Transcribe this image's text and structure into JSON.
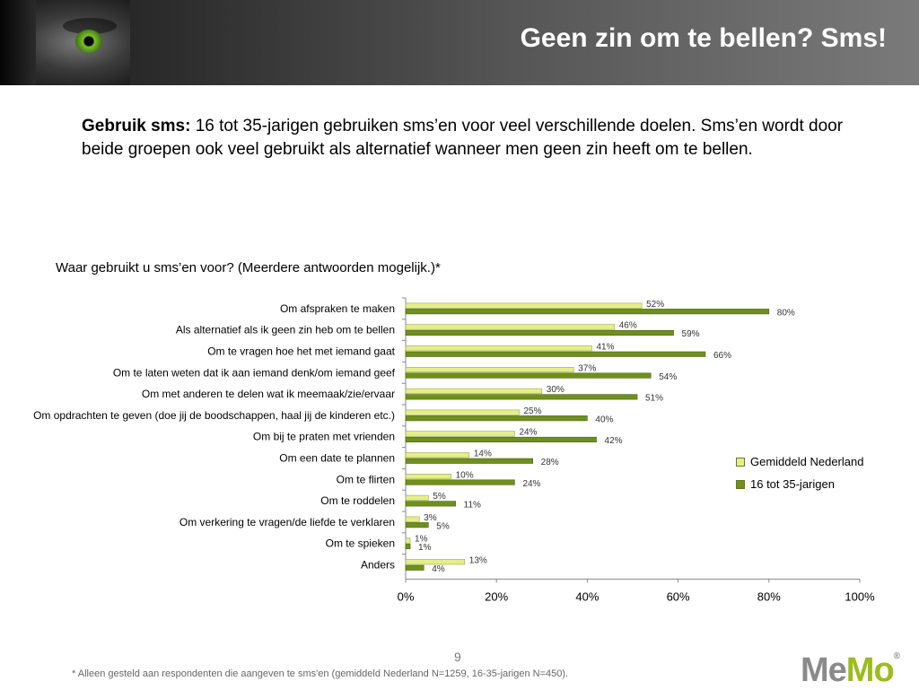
{
  "header": {
    "title": "Geen zin om te bellen? Sms!"
  },
  "intro": {
    "bold": "Gebruik sms:",
    "text": " 16 tot 35-jarigen gebruiken sms’en  voor veel verschillende doelen. Sms’en wordt door beide groepen ook veel gebruikt als alternatief wanneer men geen zin heeft om te bellen."
  },
  "question": "Waar gebruikt u sms’en voor? (Meerdere antwoorden mogelijk.)*",
  "colors": {
    "series1": "#e4ef8c",
    "series2": "#6f8f1e",
    "logo_accent": "#9cbc1c"
  },
  "chart_data": {
    "type": "bar",
    "orientation": "horizontal",
    "title": "Waar gebruikt u sms’en voor? (Meerdere antwoorden mogelijk.)*",
    "categories": [
      "Om afspraken te maken",
      "Als alternatief als ik geen zin heb om te bellen",
      "Om te vragen hoe het met iemand gaat",
      "Om te laten weten dat ik aan iemand denk/om iemand geef",
      "Om met anderen te delen wat ik meemaak/zie/ervaar",
      "Om opdrachten te geven (doe jij de boodschappen, haal jij de kinderen etc.)",
      "Om bij te praten met vrienden",
      "Om een date te plannen",
      "Om te flirten",
      "Om te roddelen",
      "Om verkering te vragen/de liefde te verklaren",
      "Om te spieken",
      "Anders"
    ],
    "series": [
      {
        "name": "Gemiddeld Nederland",
        "values": [
          52,
          46,
          41,
          37,
          30,
          25,
          24,
          14,
          10,
          5,
          3,
          1,
          13
        ]
      },
      {
        "name": "16 tot 35-jarigen",
        "values": [
          80,
          59,
          66,
          54,
          51,
          40,
          42,
          28,
          24,
          11,
          5,
          1,
          4
        ]
      }
    ],
    "value_format": "%",
    "xlim": [
      0,
      100
    ],
    "xticks": [
      "0%",
      "20%",
      "40%",
      "60%",
      "80%",
      "100%"
    ],
    "grid": false,
    "legend": "right"
  },
  "footer": {
    "page_number": "9",
    "footnote": "* Alleen gesteld aan respondenten die aangeven te sms'en (gemiddeld Nederland N=1259, 16-35-jarigen N=450).",
    "logo_me": "Me",
    "logo_mo": "Mo",
    "logo_reg": "®"
  }
}
